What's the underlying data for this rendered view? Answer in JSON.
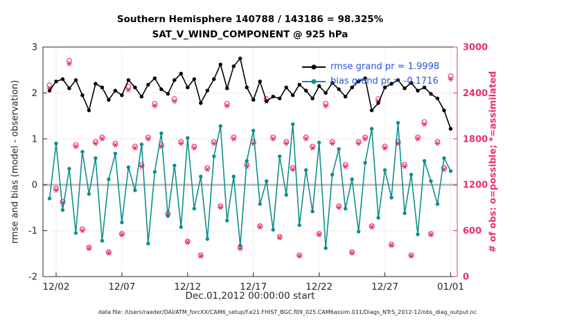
{
  "chart_data": {
    "type": "line",
    "title_line1": "Southern Hemisphere 140788 / 143186 = 98.325%",
    "title_line2": "SAT_V_WIND_COMPONENT @ 925 hPa",
    "xlabel": "Dec.01,2012 00:00:00 start",
    "ylabel_left": "rmse and bias (model - observation)",
    "ylabel_right": "# of obs: o=possible; *=assimilated",
    "ylim_left": [
      -2,
      3
    ],
    "ylim_right": [
      0,
      3000
    ],
    "yticks_left": [
      -2,
      -1,
      0,
      1,
      2,
      3
    ],
    "yticks_right": [
      0,
      600,
      1200,
      1800,
      2400,
      3000
    ],
    "x_domain": [
      0,
      31.5
    ],
    "xticks": [
      {
        "day": 1,
        "label": "12/02"
      },
      {
        "day": 6,
        "label": "12/07"
      },
      {
        "day": 11,
        "label": "12/12"
      },
      {
        "day": 16,
        "label": "12/17"
      },
      {
        "day": 21,
        "label": "12/22"
      },
      {
        "day": 26,
        "label": "12/27"
      },
      {
        "day": 31,
        "label": "01/01"
      }
    ],
    "legend": [
      {
        "label": "rmse grand pr = 1.9998",
        "color_key": "rmse"
      },
      {
        "label": "bias grand pr = -0.1716",
        "color_key": "bias"
      }
    ],
    "colors": {
      "rmse": "#000000",
      "bias": "#0e8e8e",
      "obs": "#e8306d",
      "legend_text": "#2653d8",
      "grid": "#ececec",
      "zero_line": "#bcbcbc",
      "axis": "#262626"
    },
    "series": {
      "time_days": [
        0.5,
        1,
        1.5,
        2,
        2.5,
        3,
        3.5,
        4,
        4.5,
        5,
        5.5,
        6,
        6.5,
        7,
        7.5,
        8,
        8.5,
        9,
        9.5,
        10,
        10.5,
        11,
        11.5,
        12,
        12.5,
        13,
        13.5,
        14,
        14.5,
        15,
        15.5,
        16,
        16.5,
        17,
        17.5,
        18,
        18.5,
        19,
        19.5,
        20,
        20.5,
        21,
        21.5,
        22,
        22.5,
        23,
        23.5,
        24,
        24.5,
        25,
        25.5,
        26,
        26.5,
        27,
        27.5,
        28,
        28.5,
        29,
        29.5,
        30,
        30.5,
        31
      ],
      "rmse": [
        2.05,
        2.25,
        2.3,
        2.1,
        2.28,
        1.95,
        1.62,
        2.2,
        2.12,
        1.85,
        2.05,
        1.95,
        2.28,
        2.12,
        1.92,
        2.18,
        2.32,
        2.08,
        1.98,
        2.28,
        2.42,
        2.12,
        2.3,
        1.78,
        2.05,
        2.3,
        2.62,
        2.1,
        2.58,
        2.75,
        2.12,
        1.85,
        2.25,
        1.82,
        1.92,
        1.88,
        2.12,
        1.95,
        2.18,
        2.05,
        1.88,
        2.15,
        2.0,
        2.22,
        2.08,
        1.92,
        2.12,
        2.25,
        2.32,
        1.62,
        1.78,
        2.12,
        2.2,
        2.28,
        2.1,
        2.22,
        2.05,
        2.12,
        1.98,
        1.88,
        1.62,
        1.22
      ],
      "bias": [
        -0.3,
        0.9,
        -0.55,
        0.35,
        -1.05,
        0.72,
        -0.2,
        0.58,
        -1.22,
        0.12,
        0.68,
        -0.82,
        0.38,
        -0.12,
        0.88,
        -1.28,
        0.28,
        1.12,
        -0.68,
        0.42,
        -0.92,
        1.02,
        -0.52,
        0.18,
        -1.18,
        0.62,
        1.28,
        -0.78,
        0.18,
        -1.32,
        0.52,
        1.18,
        -0.42,
        0.08,
        -0.98,
        0.62,
        -0.22,
        1.32,
        -0.88,
        0.32,
        -0.58,
        0.92,
        -1.38,
        0.22,
        0.78,
        -0.52,
        0.12,
        -1.02,
        0.48,
        1.22,
        -0.72,
        0.32,
        -0.28,
        1.35,
        -0.62,
        0.22,
        -1.08,
        0.52,
        0.08,
        -0.42,
        0.58,
        0.3
      ],
      "n_possible": [
        2500,
        1150,
        980,
        2820,
        1720,
        620,
        380,
        1760,
        1820,
        320,
        1740,
        560,
        2480,
        1700,
        1460,
        1820,
        2260,
        1720,
        820,
        2320,
        1760,
        460,
        1700,
        280,
        1420,
        1760,
        920,
        2260,
        1820,
        380,
        1460,
        1760,
        660,
        2320,
        1820,
        520,
        1760,
        1420,
        280,
        1820,
        1700,
        560,
        2260,
        1760,
        920,
        1460,
        320,
        1760,
        1820,
        660,
        2320,
        1700,
        420,
        1760,
        1460,
        280,
        1820,
        2020,
        560,
        1760,
        1420,
        2620
      ],
      "n_assimilated": [
        2460,
        1130,
        960,
        2780,
        1700,
        600,
        370,
        1740,
        1800,
        310,
        1720,
        550,
        2440,
        1680,
        1440,
        1800,
        2230,
        1700,
        810,
        2290,
        1740,
        450,
        1680,
        270,
        1400,
        1740,
        905,
        2230,
        1800,
        370,
        1440,
        1740,
        650,
        2290,
        1800,
        510,
        1740,
        1400,
        270,
        1800,
        1680,
        550,
        2230,
        1740,
        905,
        1440,
        310,
        1740,
        1800,
        650,
        2290,
        1680,
        410,
        1740,
        1440,
        270,
        1800,
        1990,
        550,
        1740,
        1400,
        2580
      ]
    }
  },
  "footer": {
    "data_file": "data file: /Users/raeder/DAI/ATM_forcXX/CAM6_setup/f.e21.FHIST_BGC.f09_025.CAM6assim.011/Diags_NTrS_2012-12/obs_diag_output.nc"
  }
}
